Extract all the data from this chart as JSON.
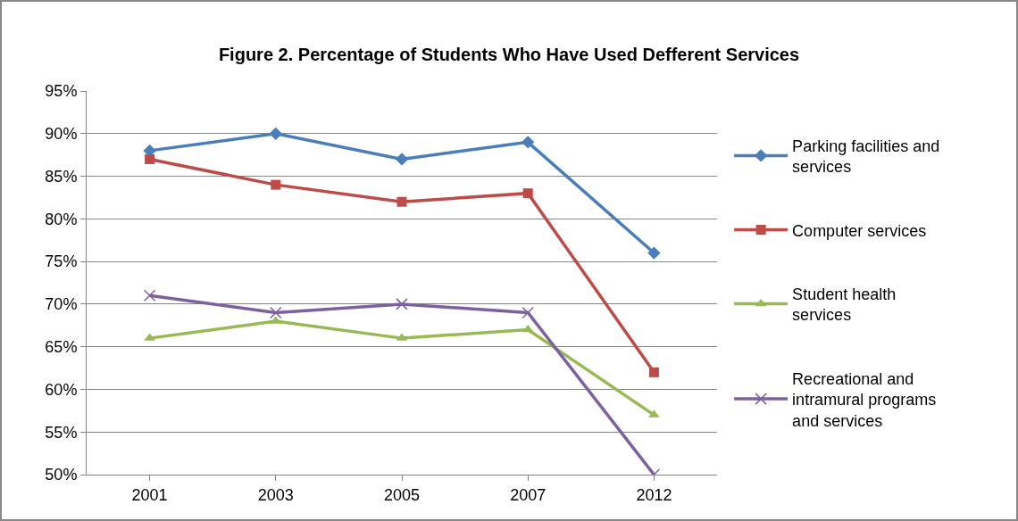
{
  "chart_data": {
    "type": "line",
    "title": "Figure 2. Percentage of Students Who Have Used Defferent Services",
    "categories": [
      "2001",
      "2003",
      "2005",
      "2007",
      "2012"
    ],
    "series": [
      {
        "name": "Parking facilities and services",
        "color": "#4a7ebb",
        "marker": "diamond",
        "values": [
          88,
          90,
          87,
          89,
          76
        ]
      },
      {
        "name": "Computer services",
        "color": "#be4b48",
        "marker": "square",
        "values": [
          87,
          84,
          82,
          83,
          62
        ]
      },
      {
        "name": "Student health services",
        "color": "#98b954",
        "marker": "triangle",
        "values": [
          66,
          68,
          66,
          67,
          57
        ]
      },
      {
        "name": "Recreational and intramural programs and services",
        "color": "#7d60a0",
        "marker": "cross",
        "values": [
          71,
          69,
          70,
          69,
          50
        ]
      }
    ],
    "ylim": [
      50,
      95
    ],
    "yticks": [
      {
        "value": 50,
        "label": "50%"
      },
      {
        "value": 55,
        "label": "55%"
      },
      {
        "value": 60,
        "label": "60%"
      },
      {
        "value": 65,
        "label": "65%"
      },
      {
        "value": 70,
        "label": "70%"
      },
      {
        "value": 75,
        "label": "75%"
      },
      {
        "value": 80,
        "label": "80%"
      },
      {
        "value": 85,
        "label": "85%"
      },
      {
        "value": 90,
        "label": "90%"
      },
      {
        "value": 95,
        "label": "95%"
      }
    ],
    "grid": "y",
    "legend": "right",
    "line_style": "solid"
  }
}
